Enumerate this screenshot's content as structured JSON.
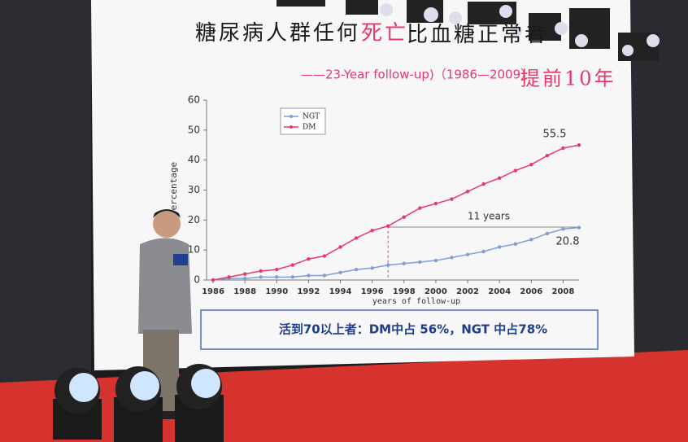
{
  "chart_data": {
    "type": "line",
    "title_parts": [
      "糖尿病人群任何",
      "死亡",
      "比血糖正常者",
      "提前10年"
    ],
    "title_colors": [
      "#1a1a1a",
      "#e8386a",
      "#1a1a1a",
      "#e8386a"
    ],
    "subtitle": "——23-Year follow-up)（1986—2009）",
    "xlabel": "years of follow-up",
    "ylabel": "Percentage",
    "x": [
      1986,
      1987,
      1988,
      1989,
      1990,
      1991,
      1992,
      1993,
      1994,
      1995,
      1996,
      1997,
      1998,
      1999,
      2000,
      2001,
      2002,
      2003,
      2004,
      2005,
      2006,
      2007,
      2008,
      2009
    ],
    "series": [
      {
        "name": "NGT",
        "color": "#7d9ed6",
        "values": [
          0,
          0.5,
          0.5,
          1,
          1,
          1,
          1.5,
          1.5,
          2.5,
          3.5,
          4,
          5,
          5.5,
          6,
          6.5,
          7.5,
          8.5,
          9.5,
          11,
          12,
          13.5,
          15.5,
          17,
          17.5
        ]
      },
      {
        "name": "DM",
        "color": "#e8386a",
        "values": [
          0,
          1,
          2,
          3,
          3.5,
          5,
          7,
          8,
          11,
          14,
          16.5,
          18,
          21,
          24,
          25.5,
          27,
          29.5,
          32,
          34,
          36.5,
          38.5,
          41.5,
          44,
          45
        ]
      }
    ],
    "xlim": [
      1986,
      2009
    ],
    "xticks": [
      1986,
      1988,
      1990,
      1992,
      1994,
      1996,
      1998,
      2000,
      2002,
      2004,
      2006,
      2008
    ],
    "ylim": [
      0,
      60
    ],
    "yticks": [
      0,
      10,
      20,
      30,
      40,
      50,
      60
    ],
    "legend": "upper left",
    "annotations": [
      "55.5",
      "11 years",
      "20.8"
    ],
    "footnote": "活到70以上者：DM中占 56%，NGT 中占78%"
  }
}
